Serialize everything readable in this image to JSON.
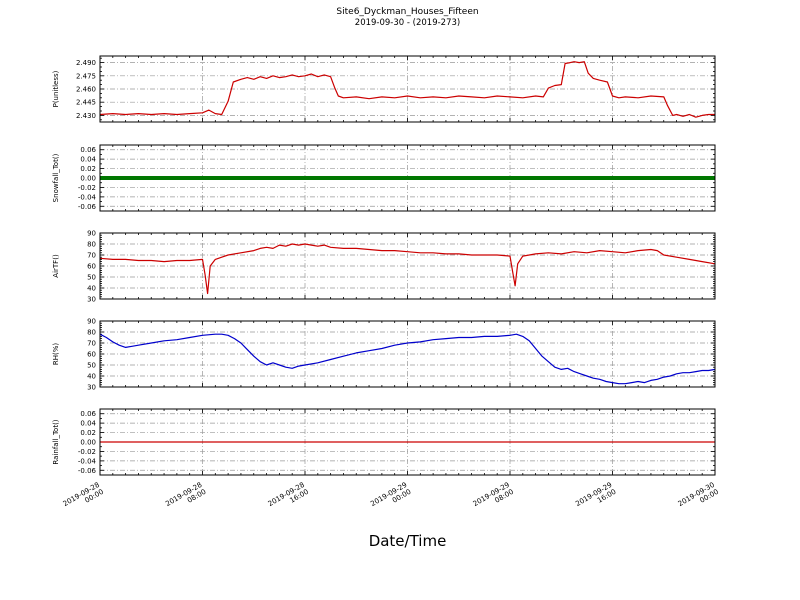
{
  "chart_data": {
    "type": "line",
    "title": "Site6_Dyckman_Houses_Fifteen",
    "subtitle": "2019-09-30 - (2019-273)",
    "xlabel": "Date/Time",
    "grid": true,
    "grid_color": "#999999",
    "xlim": [
      0,
      48
    ],
    "x_minor_step": 1,
    "xticks": [
      {
        "pos": 0,
        "date": "2019-09-28",
        "time": "00:00"
      },
      {
        "pos": 8,
        "date": "2019-09-28",
        "time": "08:00"
      },
      {
        "pos": 16,
        "date": "2019-09-28",
        "time": "16:00"
      },
      {
        "pos": 24,
        "date": "2019-09-29",
        "time": "00:00"
      },
      {
        "pos": 32,
        "date": "2019-09-29",
        "time": "08:00"
      },
      {
        "pos": 40,
        "date": "2019-09-29",
        "time": "16:00"
      },
      {
        "pos": 48,
        "date": "2019-09-30",
        "time": "00:00"
      }
    ],
    "subplots": [
      {
        "id": "p-unitless",
        "ylabel": "P(unitless)",
        "color": "#cc0000",
        "line_width": 1.2,
        "ylim": [
          2.4225,
          2.4975
        ],
        "y_minor_step": 0.005,
        "yticks": [
          2.43,
          2.445,
          2.46,
          2.475,
          2.49
        ],
        "ytick_labels": [
          "2.430",
          "2.445",
          "2.460",
          "2.475",
          "2.490"
        ],
        "points": [
          [
            0,
            2.431
          ],
          [
            1,
            2.432
          ],
          [
            2,
            2.431
          ],
          [
            3,
            2.432
          ],
          [
            4,
            2.431
          ],
          [
            5,
            2.432
          ],
          [
            6,
            2.431
          ],
          [
            7,
            2.432
          ],
          [
            8,
            2.433
          ],
          [
            8.5,
            2.436
          ],
          [
            9,
            2.432
          ],
          [
            9.5,
            2.431
          ],
          [
            10,
            2.446
          ],
          [
            10.4,
            2.468
          ],
          [
            11,
            2.471
          ],
          [
            11.5,
            2.473
          ],
          [
            12,
            2.471
          ],
          [
            12.5,
            2.474
          ],
          [
            13,
            2.472
          ],
          [
            13.5,
            2.475
          ],
          [
            14,
            2.473
          ],
          [
            14.5,
            2.474
          ],
          [
            15,
            2.476
          ],
          [
            15.5,
            2.474
          ],
          [
            16,
            2.475
          ],
          [
            16.5,
            2.477
          ],
          [
            17,
            2.474
          ],
          [
            17.5,
            2.476
          ],
          [
            18,
            2.474
          ],
          [
            18.3,
            2.462
          ],
          [
            18.6,
            2.452
          ],
          [
            19,
            2.45
          ],
          [
            20,
            2.451
          ],
          [
            21,
            2.449
          ],
          [
            22,
            2.451
          ],
          [
            23,
            2.45
          ],
          [
            24,
            2.452
          ],
          [
            25,
            2.45
          ],
          [
            26,
            2.451
          ],
          [
            27,
            2.45
          ],
          [
            28,
            2.452
          ],
          [
            29,
            2.451
          ],
          [
            30,
            2.45
          ],
          [
            31,
            2.452
          ],
          [
            32,
            2.451
          ],
          [
            33,
            2.45
          ],
          [
            34,
            2.452
          ],
          [
            34.6,
            2.451
          ],
          [
            35,
            2.461
          ],
          [
            35.5,
            2.464
          ],
          [
            36,
            2.465
          ],
          [
            36.3,
            2.489
          ],
          [
            36.7,
            2.49
          ],
          [
            37,
            2.491
          ],
          [
            37.4,
            2.49
          ],
          [
            37.8,
            2.491
          ],
          [
            38.1,
            2.478
          ],
          [
            38.5,
            2.472
          ],
          [
            39,
            2.47
          ],
          [
            39.6,
            2.468
          ],
          [
            40,
            2.452
          ],
          [
            40.5,
            2.45
          ],
          [
            41,
            2.451
          ],
          [
            42,
            2.45
          ],
          [
            43,
            2.452
          ],
          [
            44,
            2.451
          ],
          [
            44.3,
            2.441
          ],
          [
            44.7,
            2.43
          ],
          [
            45,
            2.431
          ],
          [
            45.5,
            2.429
          ],
          [
            46,
            2.431
          ],
          [
            46.5,
            2.428
          ],
          [
            47,
            2.43
          ],
          [
            47.5,
            2.431
          ],
          [
            48,
            2.431
          ]
        ]
      },
      {
        "id": "snowfall-tot",
        "ylabel": "Snowfall_Tot()",
        "color": "#007700",
        "line_width": 4,
        "ylim": [
          -0.07,
          0.07
        ],
        "y_minor_step": 0.01,
        "yticks": [
          -0.06,
          -0.04,
          -0.02,
          0.0,
          0.02,
          0.04,
          0.06
        ],
        "ytick_labels": [
          "-0.06",
          "-0.04",
          "-0.02",
          "0.00",
          "0.02",
          "0.04",
          "0.06"
        ],
        "points": [
          [
            0,
            0
          ],
          [
            48,
            0
          ]
        ]
      },
      {
        "id": "airtf",
        "ylabel": "AirTF()",
        "color": "#cc0000",
        "line_width": 1.2,
        "ylim": [
          30,
          90
        ],
        "y_minor_step": 2,
        "yticks": [
          30,
          40,
          50,
          60,
          70,
          80,
          90
        ],
        "ytick_labels": [
          "30",
          "40",
          "50",
          "60",
          "70",
          "80",
          "90"
        ],
        "points": [
          [
            0,
            67
          ],
          [
            1,
            66
          ],
          [
            2,
            66
          ],
          [
            3,
            65
          ],
          [
            4,
            65
          ],
          [
            5,
            64
          ],
          [
            6,
            65
          ],
          [
            7,
            65
          ],
          [
            8,
            66
          ],
          [
            8.2,
            52
          ],
          [
            8.4,
            35
          ],
          [
            8.6,
            60
          ],
          [
            9,
            66
          ],
          [
            9.5,
            68
          ],
          [
            10,
            70
          ],
          [
            11,
            72
          ],
          [
            12,
            74
          ],
          [
            12.5,
            76
          ],
          [
            13,
            77
          ],
          [
            13.5,
            76
          ],
          [
            14,
            79
          ],
          [
            14.5,
            78
          ],
          [
            15,
            80
          ],
          [
            15.5,
            79
          ],
          [
            16,
            80
          ],
          [
            16.5,
            79
          ],
          [
            17,
            78
          ],
          [
            17.5,
            79
          ],
          [
            18,
            77
          ],
          [
            19,
            76
          ],
          [
            20,
            76
          ],
          [
            21,
            75
          ],
          [
            22,
            74
          ],
          [
            23,
            74
          ],
          [
            24,
            73
          ],
          [
            25,
            72
          ],
          [
            26,
            72
          ],
          [
            27,
            71
          ],
          [
            28,
            71
          ],
          [
            29,
            70
          ],
          [
            30,
            70
          ],
          [
            31,
            70
          ],
          [
            32,
            69
          ],
          [
            32.2,
            55
          ],
          [
            32.4,
            42
          ],
          [
            32.6,
            62
          ],
          [
            33,
            69
          ],
          [
            34,
            71
          ],
          [
            35,
            72
          ],
          [
            36,
            71
          ],
          [
            37,
            73
          ],
          [
            38,
            72
          ],
          [
            39,
            74
          ],
          [
            40,
            73
          ],
          [
            41,
            72
          ],
          [
            42,
            74
          ],
          [
            43,
            75
          ],
          [
            43.5,
            74
          ],
          [
            44,
            70
          ],
          [
            45,
            68
          ],
          [
            46,
            66
          ],
          [
            47,
            64
          ],
          [
            48,
            62
          ]
        ]
      },
      {
        "id": "rh",
        "ylabel": "RH(%)",
        "color": "#0000cc",
        "line_width": 1.2,
        "ylim": [
          30,
          90
        ],
        "y_minor_step": 2,
        "yticks": [
          30,
          40,
          50,
          60,
          70,
          80,
          90
        ],
        "ytick_labels": [
          "30",
          "40",
          "50",
          "60",
          "70",
          "80",
          "90"
        ],
        "points": [
          [
            0,
            78
          ],
          [
            0.5,
            75
          ],
          [
            1,
            71
          ],
          [
            1.5,
            68
          ],
          [
            2,
            66
          ],
          [
            2.5,
            67
          ],
          [
            3,
            68
          ],
          [
            4,
            70
          ],
          [
            5,
            72
          ],
          [
            6,
            73
          ],
          [
            7,
            75
          ],
          [
            8,
            77
          ],
          [
            9,
            78
          ],
          [
            9.5,
            78
          ],
          [
            10,
            77
          ],
          [
            10.5,
            74
          ],
          [
            11,
            70
          ],
          [
            11.5,
            64
          ],
          [
            12,
            58
          ],
          [
            12.5,
            53
          ],
          [
            13,
            50
          ],
          [
            13.5,
            52
          ],
          [
            14,
            50
          ],
          [
            14.5,
            48
          ],
          [
            15,
            47
          ],
          [
            15.5,
            49
          ],
          [
            16,
            50
          ],
          [
            17,
            52
          ],
          [
            18,
            55
          ],
          [
            19,
            58
          ],
          [
            20,
            61
          ],
          [
            21,
            63
          ],
          [
            22,
            65
          ],
          [
            23,
            68
          ],
          [
            24,
            70
          ],
          [
            25,
            71
          ],
          [
            26,
            73
          ],
          [
            27,
            74
          ],
          [
            28,
            75
          ],
          [
            29,
            75
          ],
          [
            30,
            76
          ],
          [
            31,
            76
          ],
          [
            32,
            77
          ],
          [
            32.5,
            78
          ],
          [
            33,
            76
          ],
          [
            33.5,
            72
          ],
          [
            34,
            65
          ],
          [
            34.5,
            58
          ],
          [
            35,
            53
          ],
          [
            35.5,
            48
          ],
          [
            36,
            46
          ],
          [
            36.5,
            47
          ],
          [
            37,
            44
          ],
          [
            37.5,
            42
          ],
          [
            38,
            40
          ],
          [
            38.5,
            38
          ],
          [
            39,
            37
          ],
          [
            39.5,
            35
          ],
          [
            40,
            34
          ],
          [
            40.5,
            33
          ],
          [
            41,
            33
          ],
          [
            41.5,
            34
          ],
          [
            42,
            35
          ],
          [
            42.5,
            34
          ],
          [
            43,
            36
          ],
          [
            43.5,
            37
          ],
          [
            44,
            39
          ],
          [
            44.5,
            40
          ],
          [
            45,
            42
          ],
          [
            45.5,
            43
          ],
          [
            46,
            43
          ],
          [
            46.5,
            44
          ],
          [
            47,
            45
          ],
          [
            47.5,
            45
          ],
          [
            48,
            46
          ]
        ]
      },
      {
        "id": "rainfall-tot",
        "ylabel": "Rainfall_Tot()",
        "color": "#cc0000",
        "line_width": 1.2,
        "ylim": [
          -0.07,
          0.07
        ],
        "y_minor_step": 0.01,
        "yticks": [
          -0.06,
          -0.04,
          -0.02,
          0.0,
          0.02,
          0.04,
          0.06
        ],
        "ytick_labels": [
          "-0.06",
          "-0.04",
          "-0.02",
          "0.00",
          "0.02",
          "0.04",
          "0.06"
        ],
        "points": [
          [
            0,
            0
          ],
          [
            48,
            0
          ]
        ]
      }
    ]
  }
}
